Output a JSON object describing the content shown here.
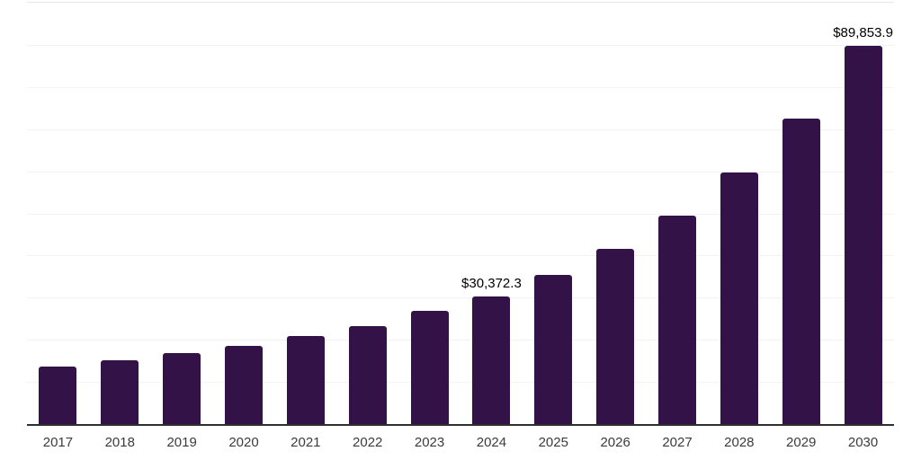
{
  "chart_data": {
    "type": "bar",
    "title": "",
    "xlabel": "",
    "ylabel": "",
    "categories": [
      "2017",
      "2018",
      "2019",
      "2020",
      "2021",
      "2022",
      "2023",
      "2024",
      "2025",
      "2026",
      "2027",
      "2028",
      "2029",
      "2030"
    ],
    "values": [
      13700,
      15200,
      16900,
      18500,
      20800,
      23300,
      26900,
      30372.3,
      35400,
      41600,
      49400,
      59600,
      72600,
      89853.9
    ],
    "data_labels": {
      "2024": "$30,372.3",
      "2030": "$89,853.9"
    },
    "ylim": [
      0,
      100000
    ],
    "gridline_interval": 10000,
    "grid": "horizontal",
    "legend_position": "none",
    "bar_color": "#331247",
    "axis_line_color": "#2e2e2e",
    "gridline_color": "#f2f2f2",
    "top_border_color": "#e7e7e7",
    "tick_label_color": "#3b3b3b",
    "value_label_color": "#000000",
    "background_color": "#ffffff"
  }
}
